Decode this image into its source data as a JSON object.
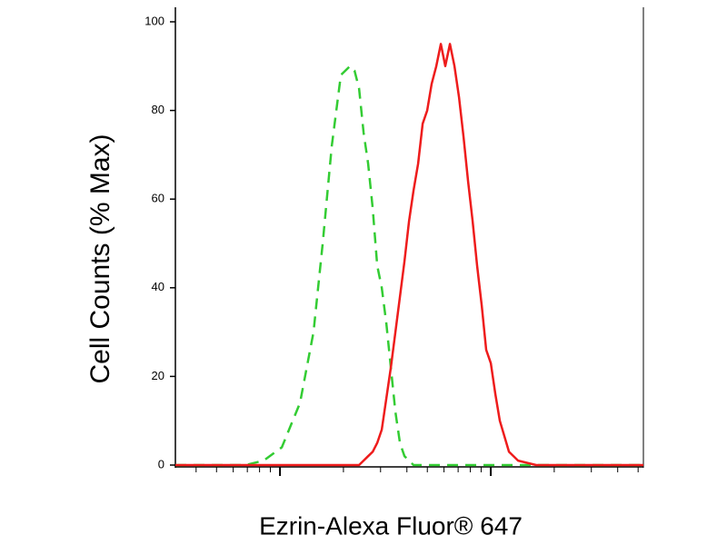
{
  "chart_data": {
    "type": "line",
    "xlabel": "Ezrin-Alexa Fluor® 647",
    "ylabel": "Cell Counts (% Max)",
    "xscale": "log",
    "x": [
      319,
      686,
      836,
      1020,
      1244,
      1443,
      1594,
      1761,
      1945,
      2147,
      2256,
      2371,
      2492,
      2619,
      2753,
      2893,
      3040,
      3194,
      3357,
      3528,
      3707,
      3896,
      4094,
      4301,
      4520,
      4750,
      4992,
      5245,
      5512,
      5793,
      6087,
      6397,
      6724,
      7066,
      7425,
      7803,
      8200,
      8616,
      9056,
      9515,
      10000,
      10510,
      11040,
      12200,
      13470,
      16430,
      52970
    ],
    "series": [
      {
        "color": "#33cc33",
        "dashed": true,
        "values": [
          0,
          0,
          1,
          4,
          14,
          30,
          50,
          72,
          88,
          90,
          89,
          85,
          75,
          68,
          58,
          45,
          40,
          32,
          22,
          12,
          5,
          2,
          1,
          0,
          0,
          0,
          0,
          0,
          0,
          0,
          0,
          0,
          0,
          0,
          0,
          0,
          0,
          0,
          0,
          0,
          0,
          0,
          0,
          0,
          0,
          0,
          0
        ]
      },
      {
        "color": "#ee1c1c",
        "dashed": false,
        "values": [
          0,
          0,
          0,
          0,
          0,
          0,
          0,
          0,
          0,
          0,
          0,
          0,
          1,
          2,
          3,
          5,
          8,
          15,
          22,
          30,
          38,
          46,
          55,
          62,
          68,
          77,
          80,
          86,
          90,
          95,
          90,
          95,
          90,
          83,
          74,
          64,
          55,
          45,
          36,
          26,
          23,
          16,
          10,
          3,
          1,
          0,
          0
        ]
      }
    ],
    "xlim": [
      319,
      52970
    ],
    "xticks": [
      400,
      500,
      600,
      700,
      800,
      900,
      1000,
      2000,
      3000,
      4000,
      5000,
      6000,
      7000,
      8000,
      9000,
      10000,
      20000,
      30000,
      40000,
      50000
    ],
    "ylim": [
      0,
      100
    ],
    "yticks": [
      0,
      20,
      40,
      60,
      80,
      100
    ]
  }
}
